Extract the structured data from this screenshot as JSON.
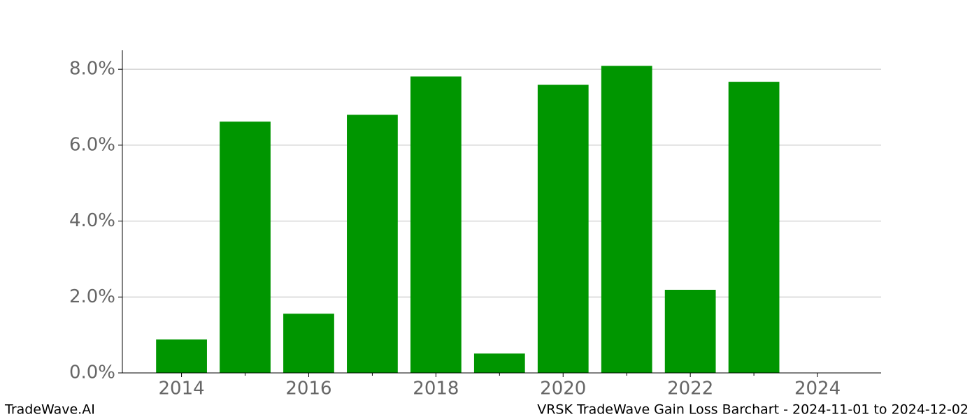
{
  "chart_data": {
    "type": "bar",
    "x": [
      2014,
      2015,
      2016,
      2017,
      2018,
      2019,
      2020,
      2021,
      2022,
      2023
    ],
    "values": [
      0.88,
      6.62,
      1.56,
      6.8,
      7.81,
      0.51,
      7.59,
      8.09,
      2.19,
      7.67
    ],
    "color": "#009600",
    "xlim": [
      2013.07,
      2025
    ],
    "xticks": [
      2014,
      2016,
      2018,
      2020,
      2022,
      2024
    ],
    "xminorticks": [
      2015,
      2017,
      2019,
      2021,
      2023
    ],
    "ylim": [
      0,
      8.5
    ],
    "yticks": [
      {
        "value": 0,
        "label": "0.0%"
      },
      {
        "value": 2,
        "label": "2.0%"
      },
      {
        "value": 4,
        "label": "4.0%"
      },
      {
        "value": 6,
        "label": "6.0%"
      },
      {
        "value": 8,
        "label": "8.0%"
      }
    ],
    "grid": true
  },
  "footer": {
    "left": "TradeWave.AI",
    "right": "VRSK TradeWave Gain Loss Barchart - 2024-11-01 to 2024-12-02"
  }
}
